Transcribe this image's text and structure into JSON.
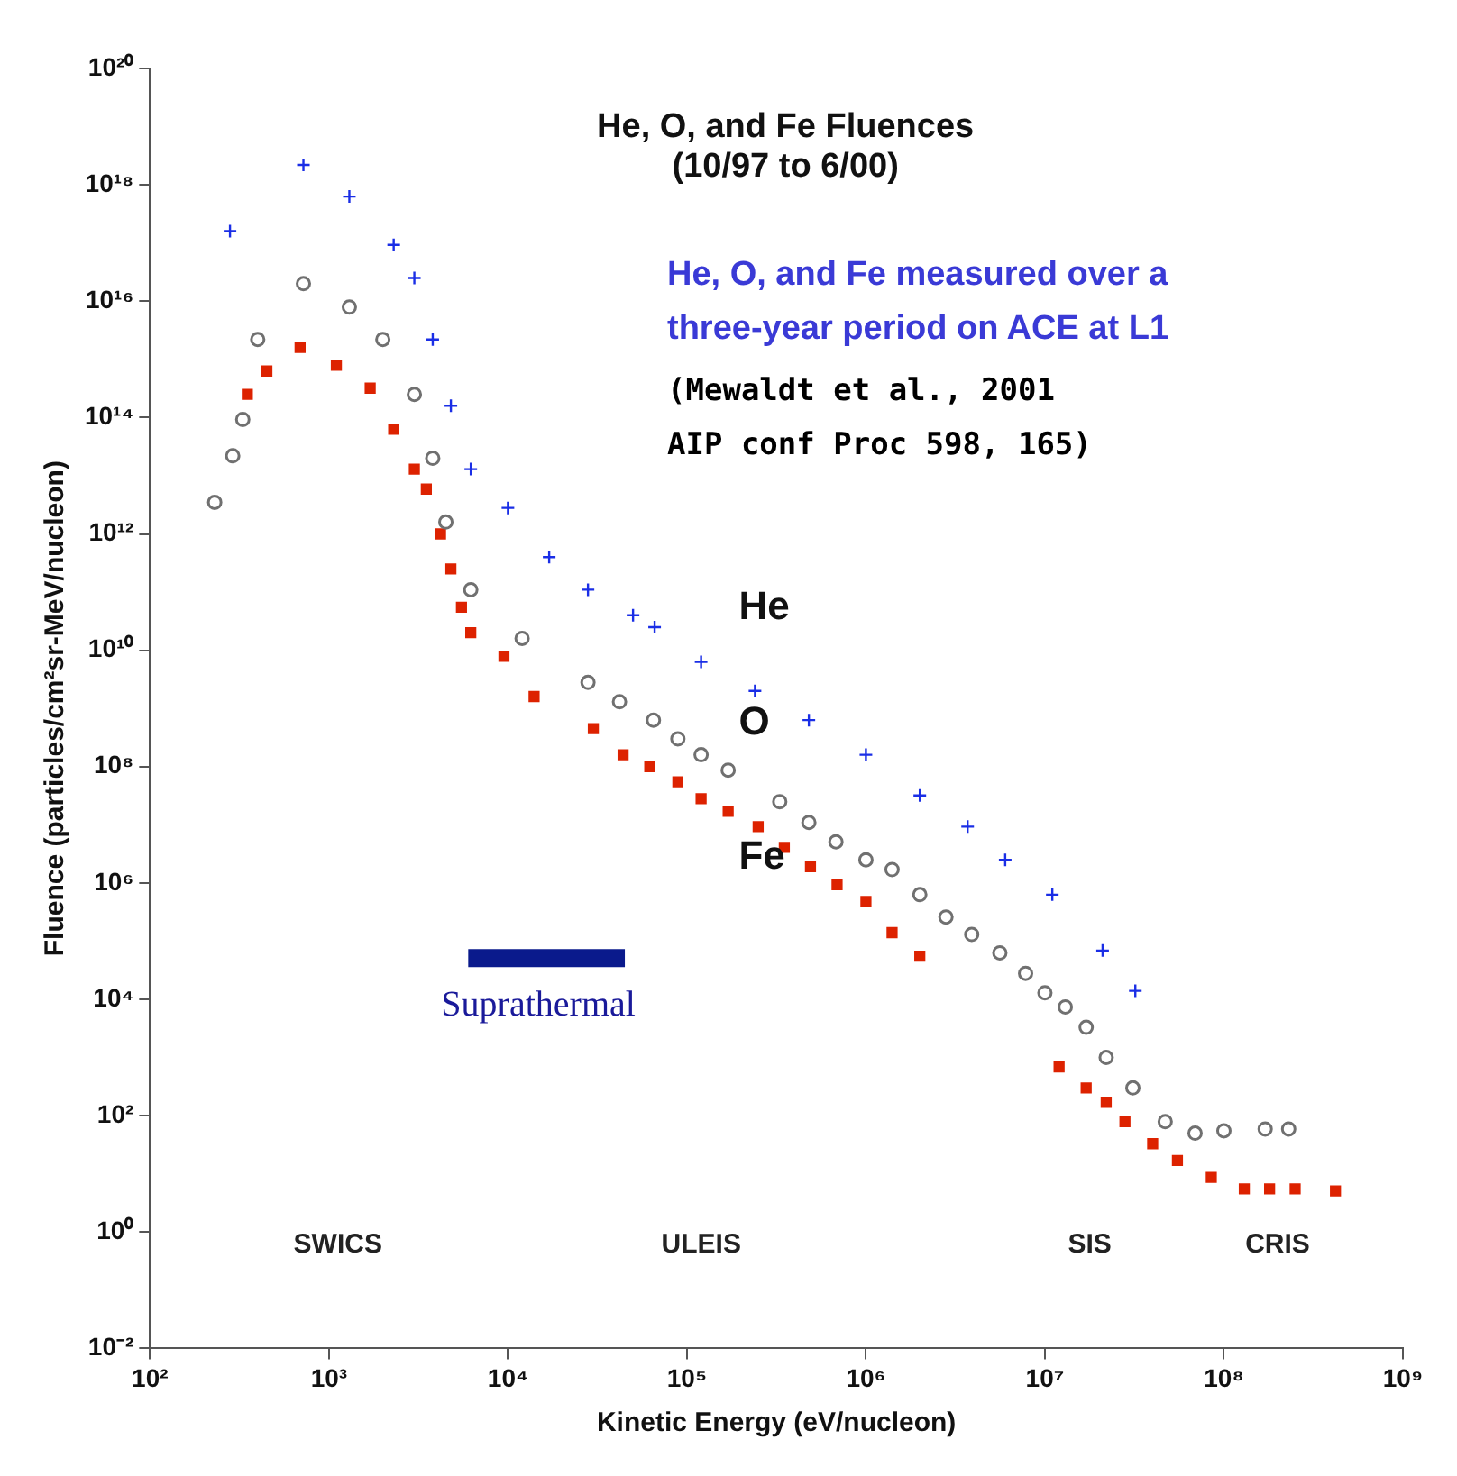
{
  "chart_data": {
    "type": "scatter",
    "title": "He, O, and Fe Fluences",
    "subtitle": "(10/97 to 6/00)",
    "xlabel": "Kinetic Energy (eV/nucleon)",
    "ylabel": "Fluence (particles/cm²sr-MeV/nucleon)",
    "log": "xy",
    "xlim": [
      100,
      1000000000
    ],
    "ylim": [
      0.01,
      1e+20
    ],
    "xticks": [
      {
        "value": 100,
        "label": "10²"
      },
      {
        "value": 1000,
        "label": "10³"
      },
      {
        "value": 10000,
        "label": "10⁴"
      },
      {
        "value": 100000,
        "label": "10⁵"
      },
      {
        "value": 1000000,
        "label": "10⁶"
      },
      {
        "value": 10000000,
        "label": "10⁷"
      },
      {
        "value": 100000000,
        "label": "10⁸"
      },
      {
        "value": 1000000000,
        "label": "10⁹"
      }
    ],
    "yticks": [
      {
        "value": 0.01,
        "label": "10⁻²"
      },
      {
        "value": 1,
        "label": "10⁰"
      },
      {
        "value": 100,
        "label": "10²"
      },
      {
        "value": 10000,
        "label": "10⁴"
      },
      {
        "value": 1000000,
        "label": "10⁶"
      },
      {
        "value": 100000000.0,
        "label": "10⁸"
      },
      {
        "value": 10000000000.0,
        "label": "10¹⁰"
      },
      {
        "value": 1000000000000.0,
        "label": "10¹²"
      },
      {
        "value": 100000000000000.0,
        "label": "10¹⁴"
      },
      {
        "value": 1e+16,
        "label": "10¹⁶"
      },
      {
        "value": 1e+18,
        "label": "10¹⁸"
      },
      {
        "value": 1e+20,
        "label": "10²⁰"
      }
    ],
    "annotations": [
      "He, O, and Fe measured over a three-year period on ACE at L1",
      "(Mewaldt et al., 2001 AIP conf Proc 598, 165)",
      "Suprathermal",
      "SWICS",
      "ULEIS",
      "SIS",
      "CRIS"
    ],
    "series": [
      {
        "type": "line",
        "color": "#0a1a8c",
        "marker": "none",
        "x": [
          6000,
          45000
        ],
        "values": [
          51000,
          51000
        ]
      },
      {
        "name": "He",
        "color": "#1a2ee6",
        "marker": "cross",
        "x": [
          280,
          720,
          1300,
          2300,
          3000,
          3800,
          4800,
          6200,
          10000,
          17000,
          28000,
          50000,
          66000,
          120000,
          240000,
          480000,
          1000000,
          2000000,
          3700000,
          6000000,
          11000000,
          21000000,
          32000000
        ],
        "values": [
          1.6e+17,
          2.2e+18,
          6.3e+17,
          9.3e+16,
          2.5e+16,
          2200000000000000.0,
          160000000000000.0,
          13000000000000.0,
          2800000000000.0,
          400000000000.0,
          110000000000.0,
          40000000000.0,
          25000000000.0,
          6300000000.0,
          2000000000.0,
          630000000.0,
          160000000.0,
          32000000.0,
          9300000.0,
          2500000.0,
          630000.0,
          69000.0,
          14000.0
        ]
      },
      {
        "name": "O",
        "color": "#707070",
        "marker": "circle",
        "x": [
          230,
          290,
          330,
          400,
          720,
          1300,
          2000,
          3000,
          3800,
          4500,
          6200,
          12000,
          28000,
          42000,
          65000,
          89000,
          120000,
          170000,
          330000,
          480000,
          680000,
          1000000,
          1400000,
          2000000,
          2800000,
          3900000,
          5600000,
          7800000,
          10000000,
          13000000,
          17000000,
          22000000,
          31000000,
          47000000,
          69000000,
          100000000,
          170000000,
          230000000
        ],
        "values": [
          3500000000000.0,
          22000000000000.0,
          93000000000000.0,
          2200000000000000.0,
          2e+16,
          7900000000000000.0,
          2200000000000000.0,
          250000000000000.0,
          20000000000000.0,
          1600000000000.0,
          110000000000.0,
          16000000000.0,
          2800000000.0,
          1300000000.0,
          630000000.0,
          300000000.0,
          160000000.0,
          87000000.0,
          25000000.0,
          11000000.0,
          5100000.0,
          2500000.0,
          1700000.0,
          630000.0,
          260000.0,
          130000.0,
          63000.0,
          28000.0,
          13000.0,
          7400,
          3300,
          1000,
          300,
          79,
          50,
          55,
          59,
          59
        ]
      },
      {
        "name": "Fe",
        "color": "#dd2200",
        "marker": "square",
        "x": [
          350,
          450,
          690,
          1100,
          1700,
          2300,
          3000,
          3500,
          4200,
          4800,
          5500,
          6200,
          9500,
          14000,
          30000,
          44000,
          62000,
          89000,
          120000,
          170000,
          250000,
          350000,
          490000,
          690000,
          1000000,
          1400000,
          2000000,
          12000000,
          17000000,
          22000000,
          28000000,
          40000000,
          55000000,
          85000000,
          130000000,
          180000000,
          250000000,
          420000000
        ],
        "values": [
          250000000000000.0,
          630000000000000.0,
          1600000000000000.0,
          790000000000000.0,
          320000000000000.0,
          63000000000000.0,
          13000000000000.0,
          5900000000000.0,
          1000000000000.0,
          250000000000.0,
          55000000000.0,
          20000000000.0,
          7900000000.0,
          1600000000.0,
          450000000.0,
          160000000.0,
          100000000.0,
          55000000.0,
          28000000.0,
          17000000.0,
          9300000.0,
          4100000.0,
          1900000.0,
          930000.0,
          480000.0,
          140000.0,
          55000.0,
          690,
          300,
          170,
          79,
          33,
          17,
          8.7,
          5.5,
          5.5,
          5.5,
          5.1
        ]
      }
    ]
  }
}
